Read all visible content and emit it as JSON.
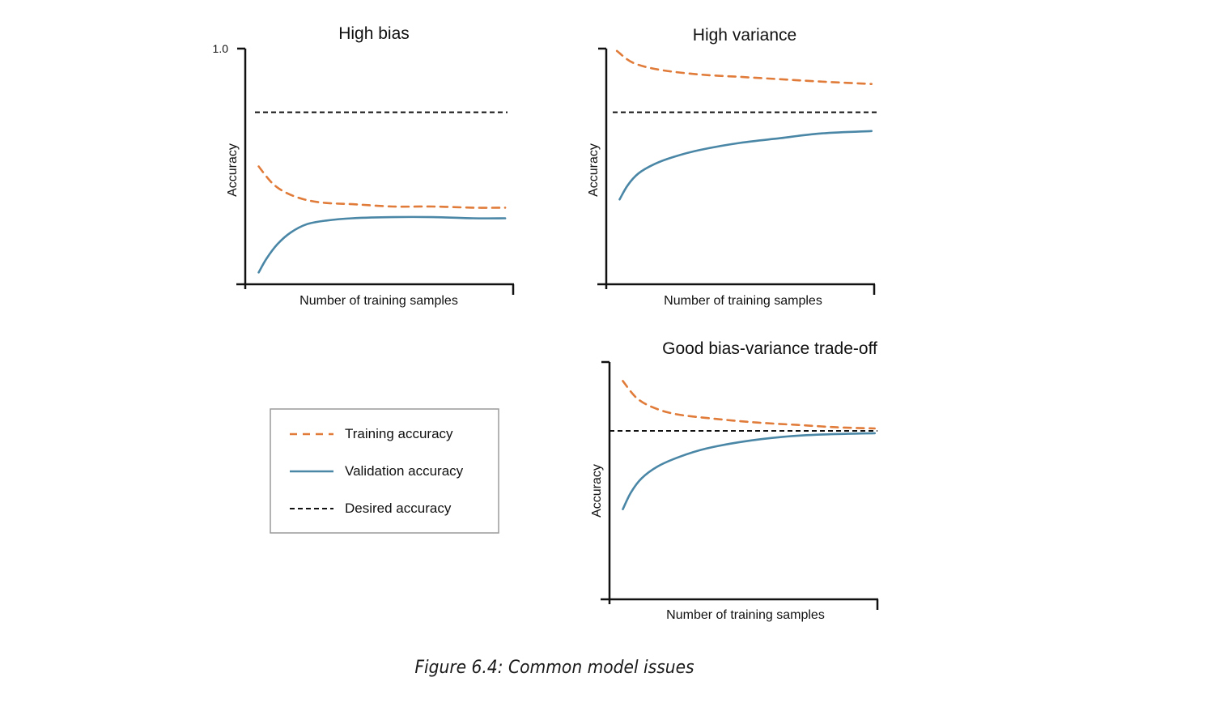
{
  "colors": {
    "training": "#e07b39",
    "validation": "#4a86a6",
    "desired": "#111111",
    "axis": "#111111",
    "legend_border": "#9a9a9a"
  },
  "legend": {
    "items": [
      {
        "key": "training",
        "label": "Training accuracy",
        "style": "dashed"
      },
      {
        "key": "validation",
        "label": "Validation accuracy",
        "style": "solid"
      },
      {
        "key": "desired",
        "label": "Desired accuracy",
        "style": "dashed"
      }
    ]
  },
  "chart_data": [
    {
      "type": "line",
      "title": "High bias",
      "xlabel": "Number of training samples",
      "ylabel": "Accuracy",
      "ylim": [
        0,
        1.0
      ],
      "xlim": [
        0,
        1
      ],
      "y_ticks": [
        {
          "value": 1.0,
          "label": "1.0"
        }
      ],
      "grid": false,
      "desired": 0.73,
      "series": [
        {
          "key": "training",
          "name": "Training accuracy",
          "x": [
            0.05,
            0.1,
            0.15,
            0.22,
            0.3,
            0.4,
            0.55,
            0.7,
            0.85,
            0.97
          ],
          "y": [
            0.5,
            0.43,
            0.39,
            0.36,
            0.345,
            0.34,
            0.33,
            0.33,
            0.325,
            0.325
          ]
        },
        {
          "key": "validation",
          "name": "Validation accuracy",
          "x": [
            0.05,
            0.08,
            0.12,
            0.17,
            0.23,
            0.3,
            0.4,
            0.55,
            0.7,
            0.85,
            0.97
          ],
          "y": [
            0.05,
            0.11,
            0.17,
            0.22,
            0.255,
            0.27,
            0.28,
            0.285,
            0.285,
            0.28,
            0.28
          ]
        }
      ]
    },
    {
      "type": "line",
      "title": "High variance",
      "xlabel": "Number of training samples",
      "ylabel": "Accuracy",
      "ylim": [
        0,
        1.0
      ],
      "xlim": [
        0,
        1
      ],
      "y_ticks": [],
      "grid": false,
      "desired": 0.73,
      "series": [
        {
          "key": "training",
          "name": "Training accuracy",
          "x": [
            0.04,
            0.1,
            0.2,
            0.35,
            0.5,
            0.65,
            0.8,
            0.99
          ],
          "y": [
            0.99,
            0.94,
            0.91,
            0.89,
            0.88,
            0.87,
            0.86,
            0.85
          ]
        },
        {
          "key": "validation",
          "name": "Validation accuracy",
          "x": [
            0.05,
            0.08,
            0.12,
            0.18,
            0.25,
            0.35,
            0.5,
            0.65,
            0.8,
            0.99
          ],
          "y": [
            0.36,
            0.42,
            0.47,
            0.51,
            0.54,
            0.57,
            0.6,
            0.62,
            0.64,
            0.65
          ]
        }
      ]
    },
    {
      "type": "line",
      "title": "Good bias-variance trade-off",
      "xlabel": "Number of training samples",
      "ylabel": "Accuracy",
      "ylim": [
        0,
        1.0
      ],
      "xlim": [
        0,
        1
      ],
      "y_ticks": [],
      "grid": false,
      "desired": 0.71,
      "series": [
        {
          "key": "training",
          "name": "Training accuracy",
          "x": [
            0.05,
            0.1,
            0.16,
            0.25,
            0.4,
            0.55,
            0.7,
            0.85,
            0.99
          ],
          "y": [
            0.92,
            0.85,
            0.81,
            0.78,
            0.76,
            0.745,
            0.735,
            0.725,
            0.72
          ]
        },
        {
          "key": "validation",
          "name": "Validation accuracy",
          "x": [
            0.05,
            0.08,
            0.12,
            0.18,
            0.26,
            0.36,
            0.5,
            0.65,
            0.8,
            0.99
          ],
          "y": [
            0.38,
            0.45,
            0.51,
            0.56,
            0.6,
            0.635,
            0.665,
            0.685,
            0.695,
            0.7
          ]
        }
      ]
    }
  ],
  "caption": "Figure 6.4: Common model issues"
}
